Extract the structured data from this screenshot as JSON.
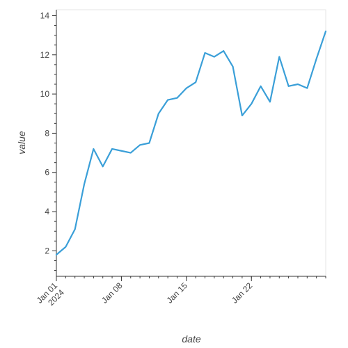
{
  "chart_data": {
    "type": "line",
    "xlabel": "date",
    "ylabel": "value",
    "x_ticks": [
      {
        "date": "2024-01-01",
        "label": [
          "Jan 01",
          "2024"
        ]
      },
      {
        "date": "2024-01-08",
        "label": [
          "Jan 08"
        ]
      },
      {
        "date": "2024-01-15",
        "label": [
          "Jan 15"
        ]
      },
      {
        "date": "2024-01-22",
        "label": [
          "Jan 22"
        ]
      }
    ],
    "y_ticks": [
      2,
      4,
      6,
      8,
      10,
      12,
      14
    ],
    "xlim": [
      "2024-01-01",
      "2024-01-30"
    ],
    "ylim": [
      0.7,
      14.3
    ],
    "grid": false,
    "line_color": "#3a9fd8",
    "series": [
      {
        "x": [
          "2024-01-01",
          "2024-01-02",
          "2024-01-03",
          "2024-01-04",
          "2024-01-05",
          "2024-01-06",
          "2024-01-07",
          "2024-01-08",
          "2024-01-09",
          "2024-01-10",
          "2024-01-11",
          "2024-01-12",
          "2024-01-13",
          "2024-01-14",
          "2024-01-15",
          "2024-01-16",
          "2024-01-17",
          "2024-01-18",
          "2024-01-19",
          "2024-01-20",
          "2024-01-21",
          "2024-01-22",
          "2024-01-23",
          "2024-01-24",
          "2024-01-25",
          "2024-01-26",
          "2024-01-27",
          "2024-01-28",
          "2024-01-29",
          "2024-01-30"
        ],
        "values": [
          1.8,
          2.2,
          3.1,
          5.4,
          7.2,
          6.3,
          7.2,
          7.1,
          7.0,
          7.4,
          7.5,
          9.0,
          9.7,
          9.8,
          10.3,
          10.6,
          12.1,
          11.9,
          12.2,
          11.4,
          8.9,
          9.5,
          10.4,
          9.6,
          11.9,
          10.4,
          10.5,
          10.3,
          11.8,
          13.2
        ]
      }
    ]
  }
}
